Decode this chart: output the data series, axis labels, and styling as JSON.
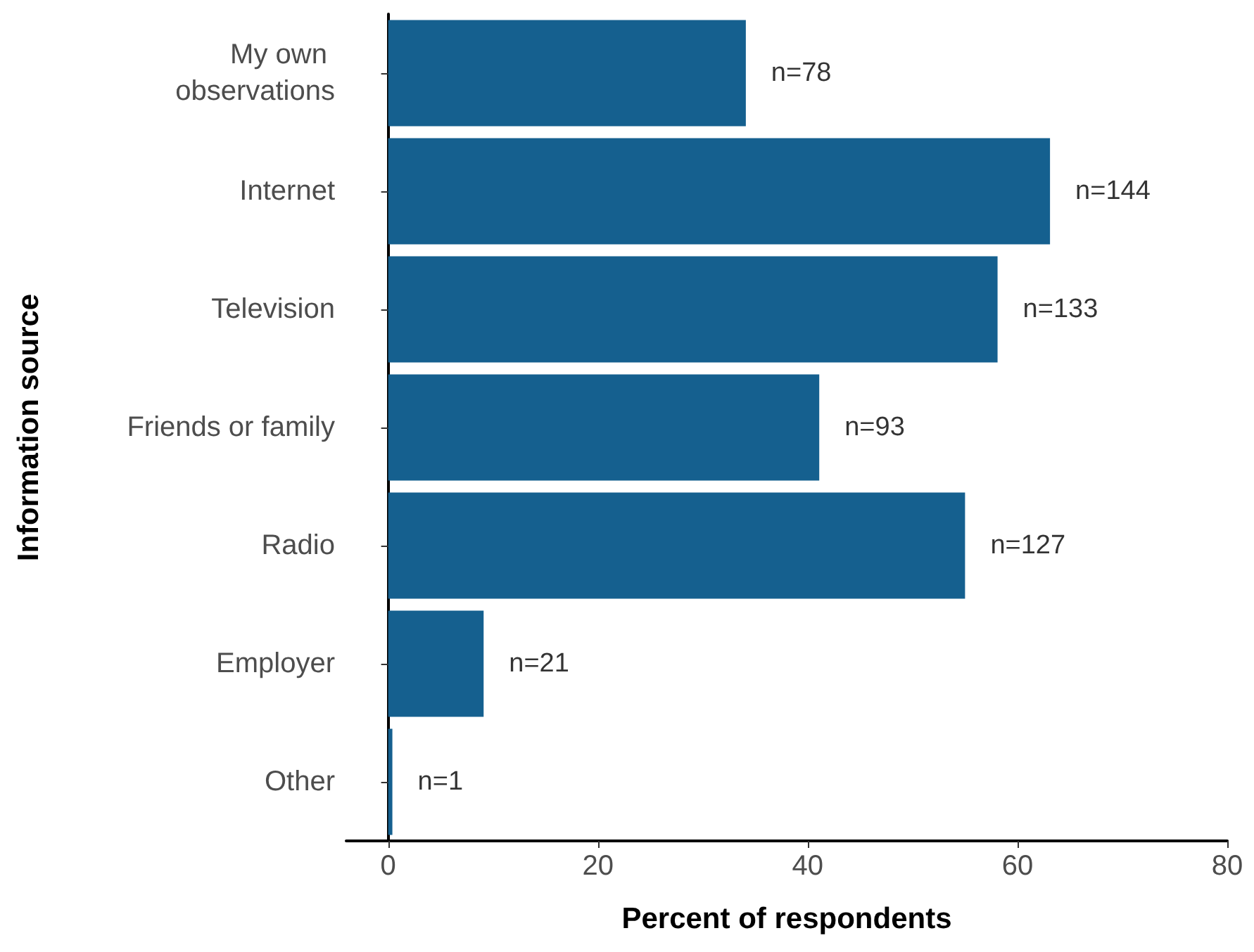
{
  "chart_data": {
    "type": "bar",
    "orientation": "horizontal",
    "xlabel": "Percent of respondents",
    "ylabel": "Information source",
    "categories": [
      "My own observations",
      "Internet",
      "Television",
      "Friends or family",
      "Radio",
      "Employer",
      "Other"
    ],
    "values": [
      34.1,
      63.1,
      58.1,
      41.1,
      55.0,
      9.1,
      0.4
    ],
    "annotations": [
      {
        "text": "n=78",
        "x": 34.1,
        "y": "My own observations"
      },
      {
        "text": "n=144",
        "x": 63.1,
        "y": "Internet"
      },
      {
        "text": "n=133",
        "x": 58.1,
        "y": "Television"
      },
      {
        "text": "n=93",
        "x": 41.1,
        "y": "Friends or family"
      },
      {
        "text": "n=127",
        "x": 55.0,
        "y": "Radio"
      },
      {
        "text": "n=21",
        "x": 9.1,
        "y": "Employer"
      },
      {
        "text": "n=1",
        "x": 0.4,
        "y": "Other"
      }
    ],
    "color": "#15608f",
    "xlim": [
      -4,
      80
    ],
    "xticks": [
      0,
      20,
      40,
      60,
      80
    ],
    "grid": false
  }
}
